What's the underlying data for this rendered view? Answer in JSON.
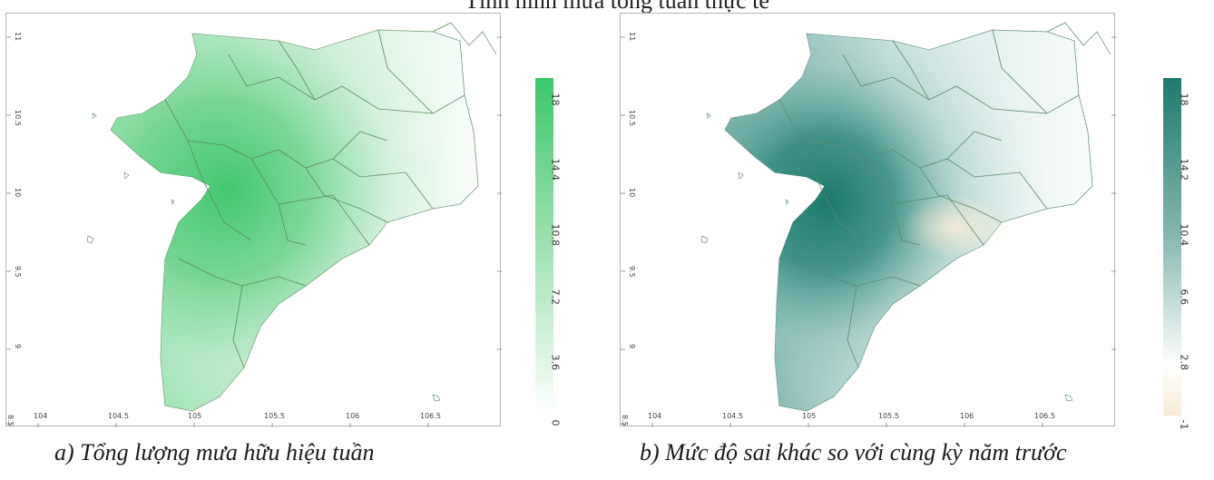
{
  "header": {
    "title_fragment": "Tình hình mưa tổng tuần thực tế"
  },
  "panels": [
    {
      "id": "a",
      "caption": "a) Tổng lượng mưa hữu hiệu tuần",
      "lon_ticks": [
        "104",
        "104.5",
        "105",
        "105.5",
        "106",
        "106.5"
      ],
      "lat_ticks": [
        "11",
        "10.5",
        "10",
        "9.5",
        "9",
        "8.5"
      ],
      "colorbar_ticks": [
        "18",
        "14.4",
        "10.8",
        "7.2",
        "3.6",
        "0"
      ],
      "colorbar_colors": {
        "top": "#3cc76a",
        "bottom": "#ffffff"
      },
      "fill_color": "#3cc76a"
    },
    {
      "id": "b",
      "caption": "b) Mức độ sai khác so với cùng kỳ năm trước",
      "lon_ticks": [
        "104",
        "104.5",
        "105",
        "105.5",
        "106",
        "106.5"
      ],
      "lat_ticks": [
        "11",
        "10.5",
        "10",
        "9.5",
        "9",
        "8.5"
      ],
      "colorbar_ticks": [
        "18",
        "14.2",
        "10.4",
        "6.6",
        "2.8",
        "-1"
      ],
      "colorbar_colors": {
        "top": "#1d7a6c",
        "mid": "#ffffff",
        "bottom": "#f7ecd6"
      },
      "fill_color": "#1d7a6c"
    }
  ]
}
